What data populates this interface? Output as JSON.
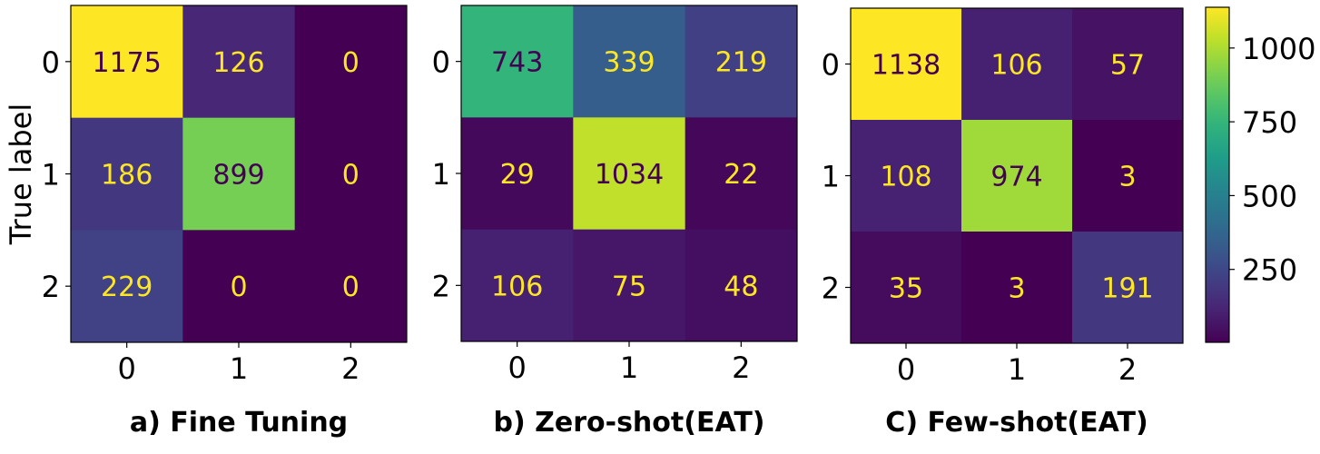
{
  "chart_data": [
    {
      "type": "heatmap",
      "caption": "a) Fine Tuning",
      "ylabel": "True label",
      "xlabel": "",
      "x_ticks": [
        "0",
        "1",
        "2"
      ],
      "y_ticks": [
        "0",
        "1",
        "2"
      ],
      "matrix": [
        [
          1175,
          126,
          0
        ],
        [
          186,
          899,
          0
        ],
        [
          229,
          0,
          0
        ]
      ],
      "cell_labels": [
        [
          "1175",
          "126",
          "0"
        ],
        [
          "186",
          "899",
          "0"
        ],
        [
          "229",
          "0",
          "0"
        ]
      ]
    },
    {
      "type": "heatmap",
      "caption": "b) Zero-shot(EAT)",
      "ylabel": "",
      "xlabel": "",
      "x_ticks": [
        "0",
        "1",
        "2"
      ],
      "y_ticks": [
        "0",
        "1",
        "2"
      ],
      "matrix": [
        [
          743,
          339,
          219
        ],
        [
          29,
          1034,
          22
        ],
        [
          106,
          75,
          48
        ]
      ],
      "cell_labels": [
        [
          "743",
          "339",
          "219"
        ],
        [
          "29",
          "1034",
          "22"
        ],
        [
          "106",
          "75",
          "48"
        ]
      ]
    },
    {
      "type": "heatmap",
      "caption": "C) Few-shot(EAT)",
      "ylabel": "",
      "xlabel": "",
      "x_ticks": [
        "0",
        "1",
        "2"
      ],
      "y_ticks": [
        "0",
        "1",
        "2"
      ],
      "matrix": [
        [
          1138,
          106,
          57
        ],
        [
          108,
          974,
          3
        ],
        [
          35,
          3,
          191
        ]
      ],
      "cell_labels": [
        [
          "1138",
          "106",
          "57"
        ],
        [
          "108",
          "974",
          "3"
        ],
        [
          "35",
          "3",
          "191"
        ]
      ]
    }
  ],
  "colorbar": {
    "colormap": "viridis",
    "range": [
      3,
      1138
    ],
    "ticks": [
      250,
      500,
      750,
      1000
    ],
    "tick_labels": [
      "250",
      "500",
      "750",
      "1000"
    ]
  }
}
